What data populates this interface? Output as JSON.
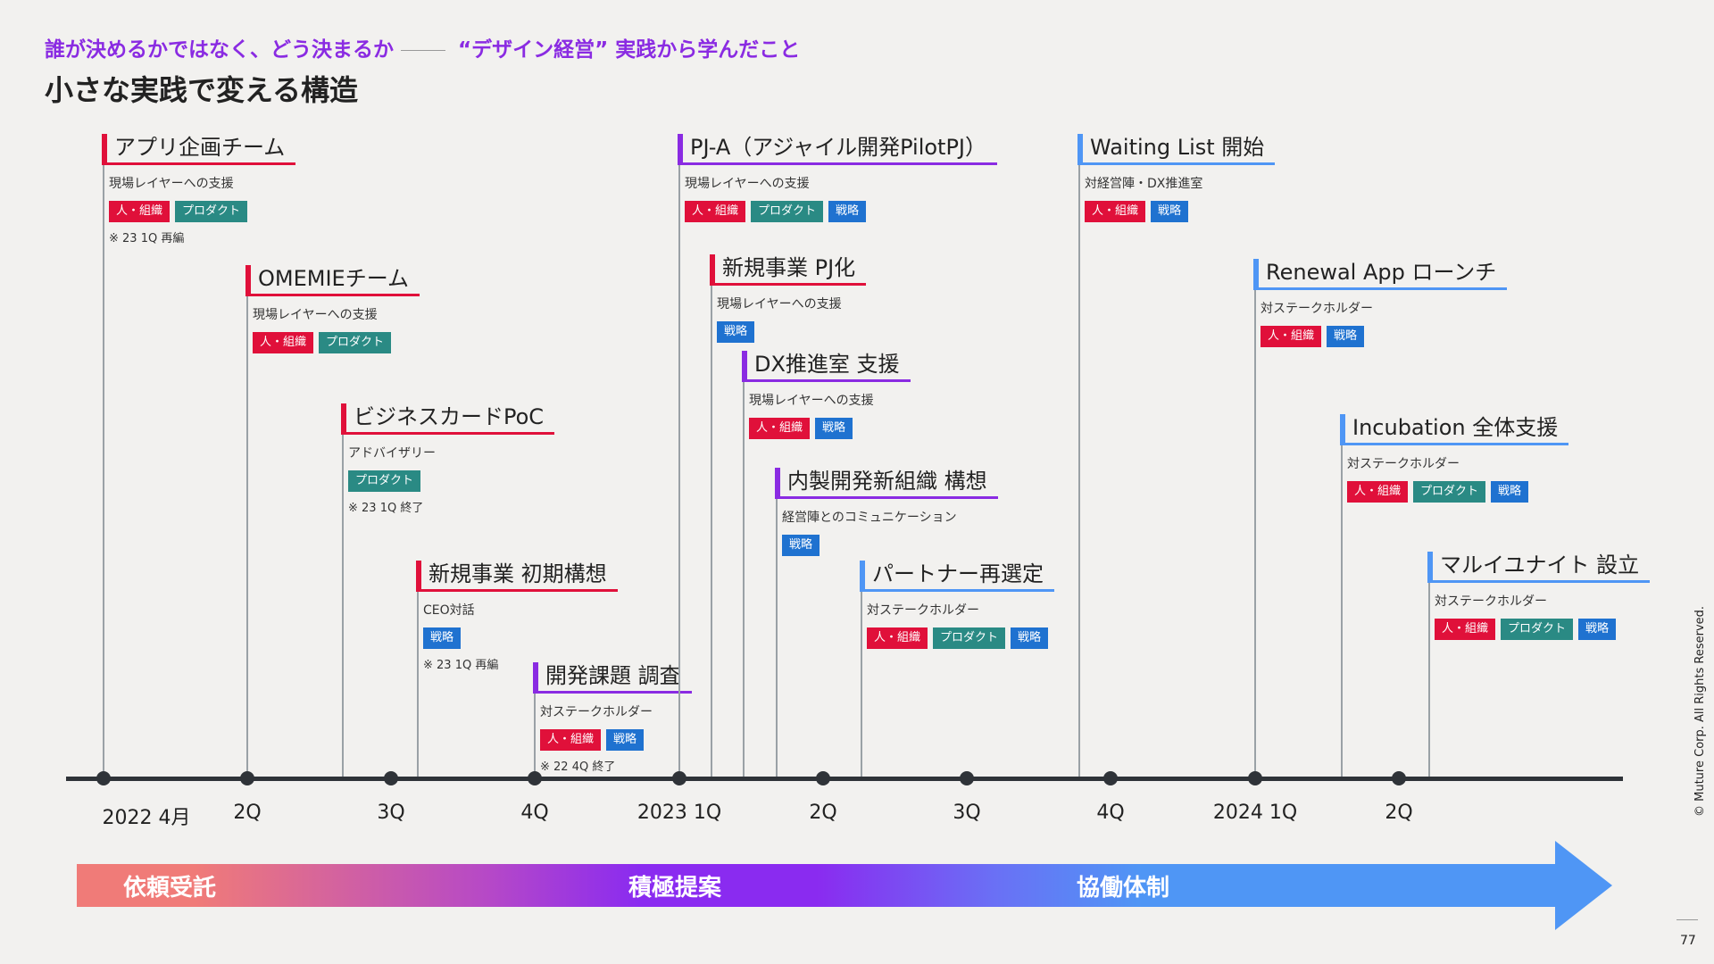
{
  "header": {
    "subtitle_part1": "誰が決めるかではなく、どう決まるか",
    "subtitle_part2": "“デザイン経営” 実践から学んだこと",
    "title": "小さな実践で変える構造"
  },
  "tag_labels": {
    "org": "人・組織",
    "product": "プロダクト",
    "strategy": "戦略"
  },
  "colors": {
    "red": "#e0103a",
    "teal": "#2a8a84",
    "blue": "#1f72d0",
    "purple": "#8a2be2",
    "skyblue": "#4f96f5"
  },
  "events": [
    {
      "id": "app-plan-team",
      "title": "アプリ企画チーム",
      "subtitle": "現場レイヤーへの支援",
      "tags": [
        "org",
        "product"
      ],
      "note": "※ 23 1Q 再編"
    },
    {
      "id": "omemie-team",
      "title": "OMEMIEチーム",
      "subtitle": "現場レイヤーへの支援",
      "tags": [
        "org",
        "product"
      ]
    },
    {
      "id": "business-card-poc",
      "title": "ビジネスカードPoC",
      "subtitle": "アドバイザリー",
      "tags": [
        "product"
      ],
      "note": "※ 23 1Q 終了"
    },
    {
      "id": "new-biz-initial",
      "title": "新規事業 初期構想",
      "subtitle": "CEO対話",
      "tags": [
        "strategy"
      ],
      "note": "※ 23 1Q 再編"
    },
    {
      "id": "dev-issue-survey",
      "title": "開発課題 調査",
      "subtitle": "対ステークホルダー",
      "tags": [
        "org",
        "strategy"
      ],
      "note": "※ 22 4Q 終了"
    },
    {
      "id": "pj-a",
      "title": "PJ-A（アジャイル開発PilotPJ）",
      "subtitle": "現場レイヤーへの支援",
      "tags": [
        "org",
        "product",
        "strategy"
      ]
    },
    {
      "id": "new-biz-pj",
      "title": "新規事業 PJ化",
      "subtitle": "現場レイヤーへの支援",
      "tags": [
        "strategy"
      ]
    },
    {
      "id": "dx-support",
      "title": "DX推進室 支援",
      "subtitle": "現場レイヤーへの支援",
      "tags": [
        "org",
        "strategy"
      ]
    },
    {
      "id": "inhouse-org",
      "title": "内製開発新組織 構想",
      "subtitle": "経営陣とのコミュニケーション",
      "tags": [
        "strategy"
      ]
    },
    {
      "id": "partner-reselect",
      "title": "パートナー再選定",
      "subtitle": "対ステークホルダー",
      "tags": [
        "org",
        "product",
        "strategy"
      ]
    },
    {
      "id": "waiting-list",
      "title": "Waiting List 開始",
      "subtitle": "対経営陣・DX推進室",
      "tags": [
        "org",
        "strategy"
      ]
    },
    {
      "id": "renewal-app",
      "title": "Renewal App ローンチ",
      "subtitle": "対ステークホルダー",
      "tags": [
        "org",
        "strategy"
      ]
    },
    {
      "id": "incubation",
      "title": "Incubation 全体支援",
      "subtitle": "対ステークホルダー",
      "tags": [
        "org",
        "product",
        "strategy"
      ]
    },
    {
      "id": "multi-unite",
      "title": "マルイユナイト 設立",
      "subtitle": "対ステークホルダー",
      "tags": [
        "org",
        "product",
        "strategy"
      ]
    }
  ],
  "timeline": {
    "ticks": [
      "2022 4月",
      "2Q",
      "3Q",
      "4Q",
      "2023 1Q",
      "2Q",
      "3Q",
      "4Q",
      "2024 1Q",
      "2Q"
    ]
  },
  "phases": [
    "依頼受託",
    "積極提案",
    "協働体制"
  ],
  "footer": {
    "copyright": "© Muture Corp. All Rights Reserved.",
    "page_number": "77"
  }
}
